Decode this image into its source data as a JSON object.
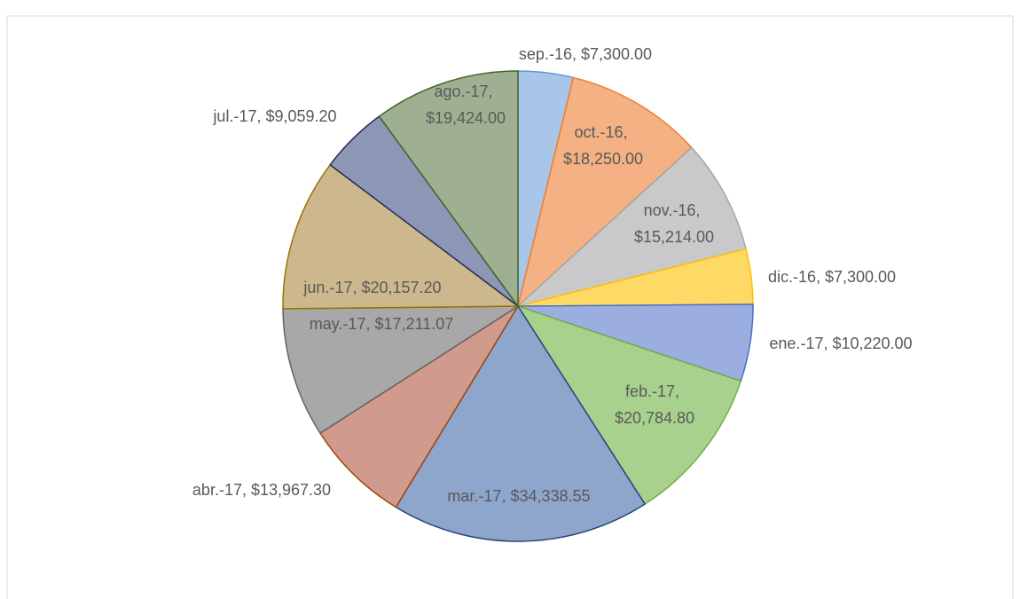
{
  "chart_data": {
    "type": "pie",
    "categories": [
      "sep.-16",
      "oct.-16",
      "nov.-16",
      "dic.-16",
      "ene.-17",
      "feb.-17",
      "mar.-17",
      "abr.-17",
      "may.-17",
      "jun.-17",
      "jul.-17",
      "ago.-17"
    ],
    "values": [
      7300,
      18250,
      15214,
      7300,
      10220,
      20784.8,
      34338.55,
      13967.3,
      17211.07,
      20157.2,
      9059.2,
      19424
    ],
    "value_labels": [
      "$7,300.00",
      "$18,250.00",
      "$15,214.00",
      "$7,300.00",
      "$10,220.00",
      "$20,784.80",
      "$34,338.55",
      "$13,967.30",
      "$17,211.07",
      "$20,157.20",
      "$9,059.20",
      "$19,424.00"
    ],
    "label_separator": ", ",
    "colors": [
      "#a9c6e8",
      "#f4b183",
      "#c9c9c9",
      "#ffd966",
      "#9caee0",
      "#a9d18e",
      "#8ea5cc",
      "#d09a8c",
      "#a8a8a8",
      "#cdb78d",
      "#8e96b5",
      "#9fb092"
    ],
    "edge_colors": [
      "#5b9bd5",
      "#ed7d31",
      "#a5a5a5",
      "#ffc000",
      "#4472c4",
      "#70ad47",
      "#264478",
      "#9e480e",
      "#636363",
      "#997300",
      "#1f2f5e",
      "#43682b"
    ]
  }
}
